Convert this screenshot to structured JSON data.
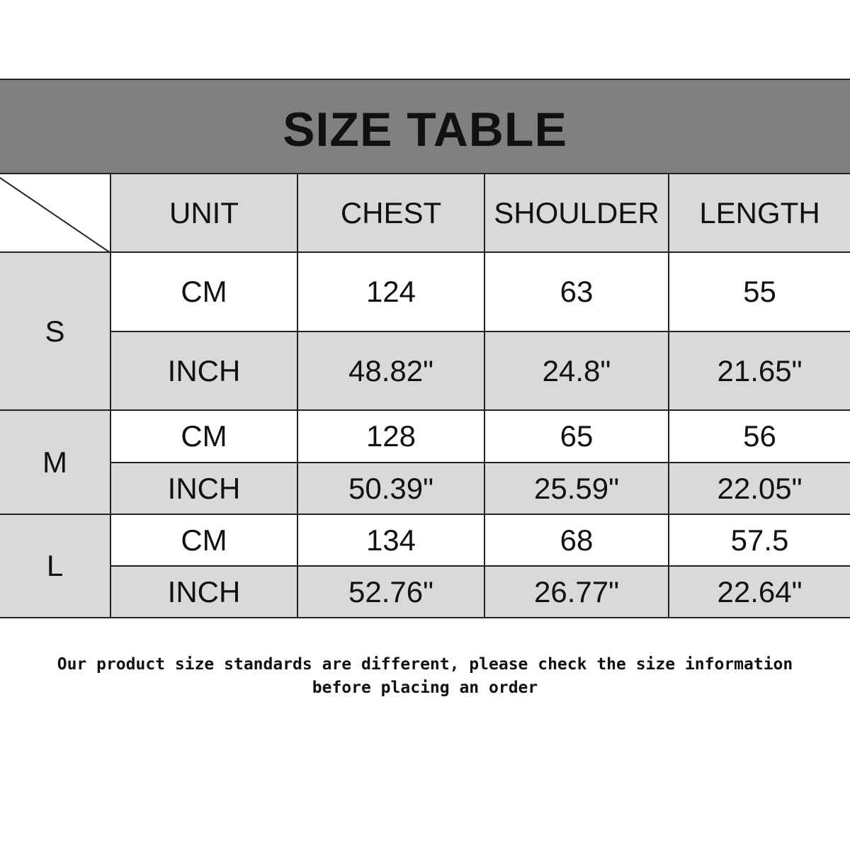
{
  "title": "SIZE TABLE",
  "headers": [
    "UNIT",
    "CHEST",
    "SHOULDER",
    "LENGTH"
  ],
  "sizes": [
    {
      "size": "S",
      "rows": [
        {
          "unit": "CM",
          "chest": "124",
          "shoulder": "63",
          "length": "55"
        },
        {
          "unit": "INCH",
          "chest": "48.82\"",
          "shoulder": "24.8\"",
          "length": "21.65\""
        }
      ]
    },
    {
      "size": "M",
      "rows": [
        {
          "unit": "CM",
          "chest": "128",
          "shoulder": "65",
          "length": "56"
        },
        {
          "unit": "INCH",
          "chest": "50.39\"",
          "shoulder": "25.59\"",
          "length": "22.05\""
        }
      ]
    },
    {
      "size": "L",
      "rows": [
        {
          "unit": "CM",
          "chest": "134",
          "shoulder": "68",
          "length": "57.5"
        },
        {
          "unit": "INCH",
          "chest": "52.76\"",
          "shoulder": "26.77\"",
          "length": "22.64\""
        }
      ]
    }
  ],
  "footer": {
    "line1": "Our product size standards are different, please check the size information",
    "line2": "before placing an order"
  },
  "colors": {
    "title_band": "#808080",
    "header_cell": "#d9d9d9",
    "border": "#222222"
  }
}
